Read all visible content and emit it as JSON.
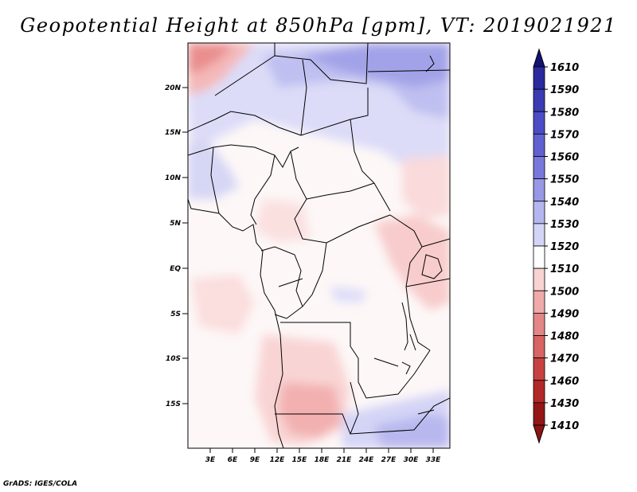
{
  "title": "Geopotential Height at 850hPa [gpm], VT: 2019021921",
  "footer": "GrADS: IGES/COLA",
  "axes": {
    "y_labels": [
      "20N",
      "15N",
      "10N",
      "5N",
      "EQ",
      "5S",
      "10S",
      "15S"
    ],
    "x_labels": [
      "3E",
      "6E",
      "9E",
      "12E",
      "15E",
      "18E",
      "21E",
      "24E",
      "27E",
      "30E",
      "33E"
    ]
  },
  "colorbar": {
    "levels": [
      "1610",
      "1590",
      "1580",
      "1570",
      "1560",
      "1550",
      "1540",
      "1530",
      "1520",
      "1510",
      "1500",
      "1490",
      "1480",
      "1470",
      "1460",
      "1430",
      "1410"
    ],
    "colors": [
      "#161278",
      "#2a2a9e",
      "#3b3bb4",
      "#4c4cc6",
      "#6161d2",
      "#7878dc",
      "#9898e6",
      "#b6b6ef",
      "#d4d4f6",
      "#ffffff",
      "#f9d2d2",
      "#f0aaaa",
      "#e48686",
      "#d86464",
      "#c84242",
      "#b22828",
      "#951616"
    ],
    "top_arrow_color": "#141270",
    "bottom_arrow_color": "#8c1414"
  }
}
